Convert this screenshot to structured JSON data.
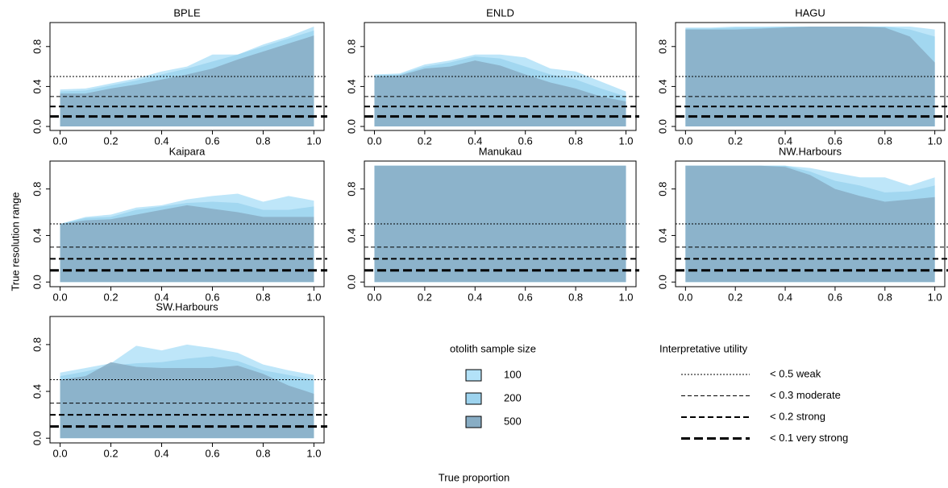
{
  "figure": {
    "ylabel": "True resolution range",
    "xlabel": "True proportion",
    "legend_title": "otolith sample size",
    "reference_title": "Interpretative utility",
    "reference_lines": [
      {
        "value": 0.5,
        "label": "< 0.5 weak"
      },
      {
        "value": 0.3,
        "label": "< 0.3 moderate"
      },
      {
        "value": 0.2,
        "label": "< 0.2 strong"
      },
      {
        "value": 0.1,
        "label": "< 0.1 very strong"
      }
    ]
  },
  "chart_data": [
    {
      "type": "area",
      "title": "BPLE",
      "x": [
        0,
        0.1,
        0.2,
        0.3,
        0.4,
        0.5,
        0.6,
        0.7,
        0.8,
        0.9,
        1
      ],
      "series": [
        {
          "name": "100",
          "color": "#b3e2f8",
          "values": [
            0.37,
            0.38,
            0.43,
            0.48,
            0.55,
            0.6,
            0.72,
            0.72,
            0.82,
            0.9,
            1.0
          ]
        },
        {
          "name": "200",
          "color": "#9dd3ee",
          "values": [
            0.35,
            0.36,
            0.41,
            0.46,
            0.52,
            0.58,
            0.65,
            0.72,
            0.8,
            0.88,
            0.96
          ]
        },
        {
          "name": "500",
          "color": "#88adc4",
          "values": [
            0.33,
            0.33,
            0.38,
            0.42,
            0.47,
            0.52,
            0.58,
            0.67,
            0.75,
            0.83,
            0.91
          ]
        }
      ],
      "xlim": [
        -0.04,
        1.04
      ],
      "ylim": [
        -0.04,
        1.04
      ],
      "xticks": [
        {
          "value": 0,
          "label": "0.0"
        },
        0.2,
        0.4,
        0.6,
        0.8,
        {
          "value": 1,
          "label": "1.0"
        }
      ],
      "yticks": [
        {
          "value": 0,
          "label": "0.0"
        },
        0.4,
        0.8
      ]
    },
    {
      "type": "area",
      "title": "ENLD",
      "x": [
        0,
        0.1,
        0.2,
        0.3,
        0.4,
        0.5,
        0.6,
        0.7,
        0.8,
        0.9,
        1
      ],
      "series": [
        {
          "name": "100",
          "color": "#b3e2f8",
          "values": [
            0.52,
            0.53,
            0.62,
            0.66,
            0.72,
            0.72,
            0.69,
            0.58,
            0.55,
            0.45,
            0.35
          ]
        },
        {
          "name": "200",
          "color": "#9dd3ee",
          "values": [
            0.51,
            0.52,
            0.6,
            0.64,
            0.7,
            0.68,
            0.6,
            0.52,
            0.47,
            0.38,
            0.3
          ]
        },
        {
          "name": "500",
          "color": "#88adc4",
          "values": [
            0.5,
            0.51,
            0.58,
            0.6,
            0.66,
            0.61,
            0.52,
            0.44,
            0.38,
            0.3,
            0.25
          ]
        }
      ],
      "xlim": [
        -0.04,
        1.04
      ],
      "ylim": [
        -0.04,
        1.04
      ],
      "xticks": [
        {
          "value": 0,
          "label": "0.0"
        },
        0.2,
        0.4,
        0.6,
        0.8,
        {
          "value": 1,
          "label": "1.0"
        }
      ],
      "yticks": [
        {
          "value": 0,
          "label": "0.0"
        },
        0.4,
        0.8
      ]
    },
    {
      "type": "area",
      "title": "HAGU",
      "x": [
        0,
        0.1,
        0.2,
        0.3,
        0.4,
        0.5,
        0.6,
        0.7,
        0.8,
        0.9,
        1
      ],
      "series": [
        {
          "name": "100",
          "color": "#b3e2f8",
          "values": [
            0.99,
            0.99,
            1,
            1,
            1,
            1,
            1,
            1,
            1,
            1,
            0.97
          ]
        },
        {
          "name": "200",
          "color": "#9dd3ee",
          "values": [
            0.98,
            0.98,
            0.99,
            0.99,
            1,
            1,
            1,
            1,
            1,
            0.97,
            0.9
          ]
        },
        {
          "name": "500",
          "color": "#88adc4",
          "values": [
            0.97,
            0.97,
            0.97,
            0.98,
            0.99,
            1,
            1,
            1,
            0.99,
            0.9,
            0.64
          ]
        }
      ],
      "xlim": [
        -0.04,
        1.04
      ],
      "ylim": [
        -0.04,
        1.04
      ],
      "xticks": [
        {
          "value": 0,
          "label": "0.0"
        },
        0.2,
        0.4,
        0.6,
        0.8,
        {
          "value": 1,
          "label": "1.0"
        }
      ],
      "yticks": [
        {
          "value": 0,
          "label": "0.0"
        },
        0.4,
        0.8
      ]
    },
    {
      "type": "area",
      "title": "Kaipara",
      "x": [
        0,
        0.1,
        0.2,
        0.3,
        0.4,
        0.5,
        0.6,
        0.7,
        0.8,
        0.9,
        1
      ],
      "series": [
        {
          "name": "100",
          "color": "#b3e2f8",
          "values": [
            0.5,
            0.56,
            0.58,
            0.64,
            0.66,
            0.71,
            0.74,
            0.76,
            0.69,
            0.74,
            0.7
          ]
        },
        {
          "name": "200",
          "color": "#9dd3ee",
          "values": [
            0.5,
            0.55,
            0.56,
            0.62,
            0.65,
            0.68,
            0.69,
            0.68,
            0.62,
            0.62,
            0.65
          ]
        },
        {
          "name": "500",
          "color": "#88adc4",
          "values": [
            0.5,
            0.53,
            0.54,
            0.58,
            0.62,
            0.66,
            0.63,
            0.6,
            0.56,
            0.56,
            0.56
          ]
        }
      ],
      "xlim": [
        -0.04,
        1.04
      ],
      "ylim": [
        -0.04,
        1.04
      ],
      "xticks": [
        {
          "value": 0,
          "label": "0.0"
        },
        0.2,
        0.4,
        0.6,
        0.8,
        {
          "value": 1,
          "label": "1.0"
        }
      ],
      "yticks": [
        {
          "value": 0,
          "label": "0.0"
        },
        0.4,
        0.8
      ]
    },
    {
      "type": "area",
      "title": "Manukau",
      "x": [
        0,
        0.1,
        0.2,
        0.3,
        0.4,
        0.5,
        0.6,
        0.7,
        0.8,
        0.9,
        1
      ],
      "series": [
        {
          "name": "100",
          "color": "#b3e2f8",
          "values": [
            1,
            1,
            1,
            1,
            1,
            1,
            1,
            1,
            1,
            1,
            1
          ]
        },
        {
          "name": "200",
          "color": "#9dd3ee",
          "values": [
            1,
            1,
            1,
            1,
            1,
            1,
            1,
            1,
            1,
            1,
            1
          ]
        },
        {
          "name": "500",
          "color": "#88adc4",
          "values": [
            1,
            1,
            1,
            1,
            1,
            1,
            1,
            1,
            1,
            1,
            1
          ]
        }
      ],
      "xlim": [
        -0.04,
        1.04
      ],
      "ylim": [
        -0.04,
        1.04
      ],
      "xticks": [
        {
          "value": 0,
          "label": "0.0"
        },
        0.2,
        0.4,
        0.6,
        0.8,
        {
          "value": 1,
          "label": "1.0"
        }
      ],
      "yticks": [
        {
          "value": 0,
          "label": "0.0"
        },
        0.4,
        0.8
      ]
    },
    {
      "type": "area",
      "title": "NW.Harbours",
      "x": [
        0,
        0.1,
        0.2,
        0.3,
        0.4,
        0.5,
        0.6,
        0.7,
        0.8,
        0.9,
        1
      ],
      "series": [
        {
          "name": "100",
          "color": "#b3e2f8",
          "values": [
            1,
            1,
            1,
            1,
            1,
            0.98,
            0.94,
            0.9,
            0.9,
            0.83,
            0.9
          ]
        },
        {
          "name": "200",
          "color": "#9dd3ee",
          "values": [
            1,
            1,
            1,
            1,
            1,
            0.95,
            0.87,
            0.83,
            0.77,
            0.78,
            0.83
          ]
        },
        {
          "name": "500",
          "color": "#88adc4",
          "values": [
            1,
            1,
            1,
            1,
            0.99,
            0.92,
            0.8,
            0.74,
            0.69,
            0.71,
            0.73
          ]
        }
      ],
      "xlim": [
        -0.04,
        1.04
      ],
      "ylim": [
        -0.04,
        1.04
      ],
      "xticks": [
        {
          "value": 0,
          "label": "0.0"
        },
        0.2,
        0.4,
        0.6,
        0.8,
        {
          "value": 1,
          "label": "1.0"
        }
      ],
      "yticks": [
        {
          "value": 0,
          "label": "0.0"
        },
        0.4,
        0.8
      ]
    },
    {
      "type": "area",
      "title": "SW.Harbours",
      "x": [
        0,
        0.1,
        0.2,
        0.3,
        0.4,
        0.5,
        0.6,
        0.7,
        0.8,
        0.9,
        1
      ],
      "series": [
        {
          "name": "100",
          "color": "#b3e2f8",
          "values": [
            0.56,
            0.6,
            0.64,
            0.79,
            0.75,
            0.8,
            0.77,
            0.73,
            0.63,
            0.58,
            0.54
          ]
        },
        {
          "name": "200",
          "color": "#9dd3ee",
          "values": [
            0.53,
            0.57,
            0.62,
            0.64,
            0.65,
            0.68,
            0.7,
            0.66,
            0.58,
            0.54,
            0.5
          ]
        },
        {
          "name": "500",
          "color": "#88adc4",
          "values": [
            0.5,
            0.53,
            0.65,
            0.61,
            0.6,
            0.6,
            0.6,
            0.62,
            0.55,
            0.45,
            0.38
          ]
        }
      ],
      "xlim": [
        -0.04,
        1.04
      ],
      "ylim": [
        -0.04,
        1.04
      ],
      "xticks": [
        {
          "value": 0,
          "label": "0.0"
        },
        0.2,
        0.4,
        0.6,
        0.8,
        {
          "value": 1,
          "label": "1.0"
        }
      ],
      "yticks": [
        {
          "value": 0,
          "label": "0.0"
        },
        0.4,
        0.8
      ]
    }
  ]
}
